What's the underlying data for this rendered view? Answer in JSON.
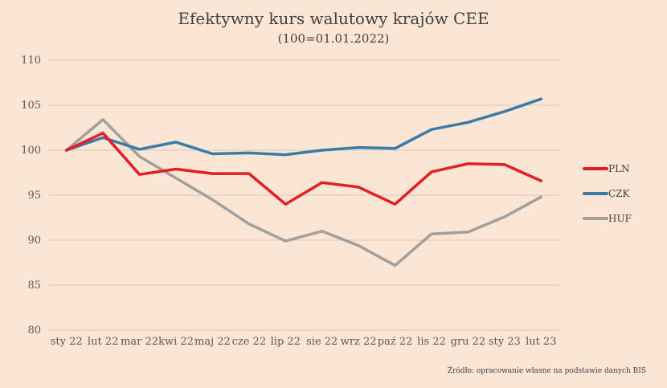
{
  "chart_data": {
    "type": "line",
    "title": "Efektywny kurs walutowy krajów CEE",
    "subtitle": "(100=01.01.2022)",
    "xlabel": "",
    "ylabel": "",
    "categories": [
      "sty 22",
      "lut 22",
      "mar 22",
      "kwi 22",
      "maj 22",
      "cze 22",
      "lip 22",
      "sie 22",
      "wrz 22",
      "paź 22",
      "lis 22",
      "gru 22",
      "sty 23",
      "lut 23"
    ],
    "ylim": [
      80,
      110
    ],
    "yticks": [
      80,
      85,
      90,
      95,
      100,
      105,
      110
    ],
    "grid": true,
    "legend_position": "right",
    "series": [
      {
        "name": "PLN",
        "color": "#e31e24",
        "values": [
          100.0,
          101.9,
          97.3,
          97.9,
          97.4,
          97.4,
          94.0,
          96.4,
          95.9,
          94.0,
          97.6,
          98.5,
          98.4,
          96.6
        ]
      },
      {
        "name": "CZK",
        "color": "#3a7ca5",
        "values": [
          100.0,
          101.4,
          100.1,
          100.9,
          99.6,
          99.7,
          99.5,
          100.0,
          100.3,
          100.2,
          102.3,
          103.1,
          104.3,
          105.7
        ]
      },
      {
        "name": "HUF",
        "color": "#a0a0a0",
        "values": [
          100.0,
          103.4,
          99.3,
          96.9,
          94.5,
          91.8,
          89.9,
          91.0,
          89.4,
          87.2,
          90.7,
          90.9,
          92.6,
          94.8
        ]
      }
    ],
    "source": "Źródło: opracowanie własne na podstawie danych BIS"
  }
}
